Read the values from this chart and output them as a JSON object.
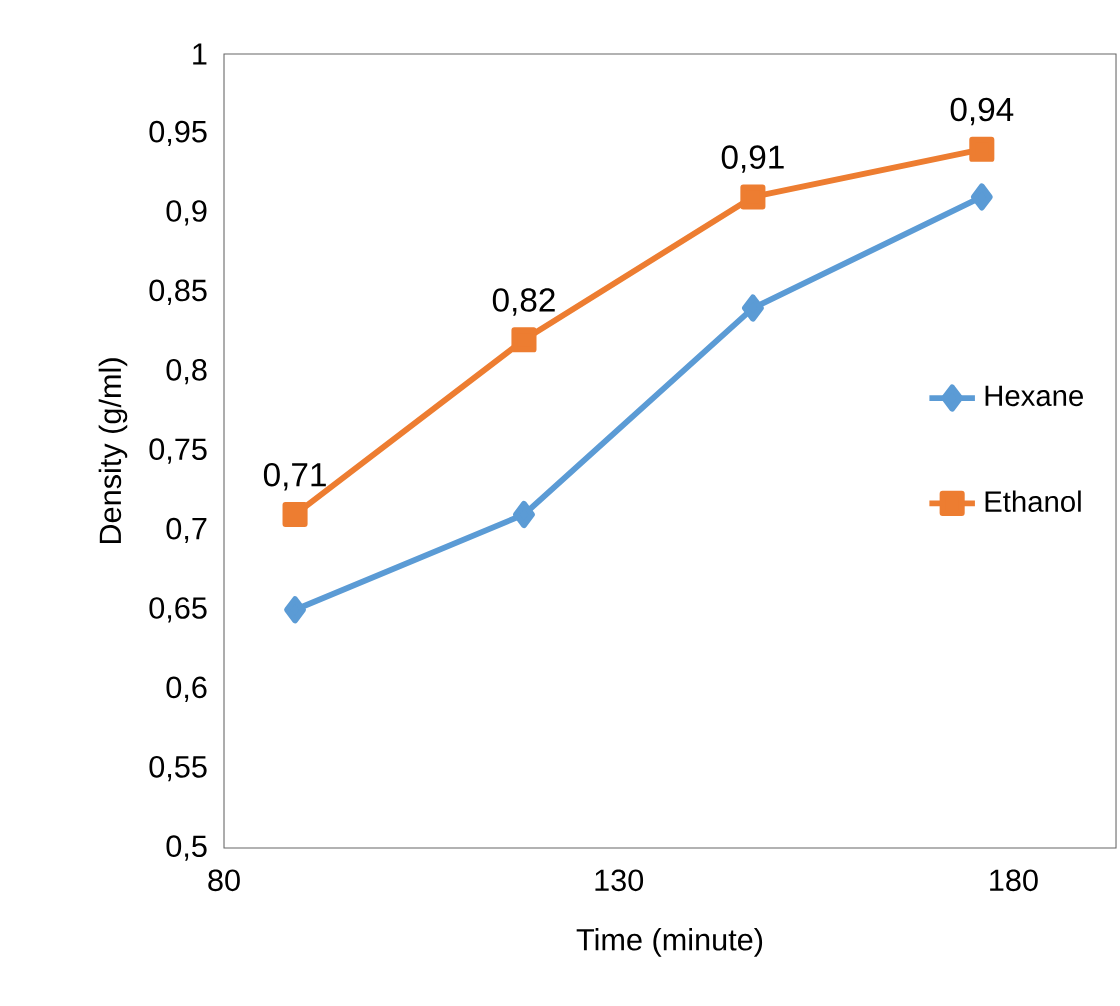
{
  "chart_data": {
    "type": "line",
    "xlabel": "Time (minute)",
    "ylabel": "Density (g/ml)",
    "xlim": [
      80,
      193
    ],
    "xticks": [
      80,
      130,
      180
    ],
    "ylim": [
      0.5,
      1
    ],
    "yticks": [
      {
        "value": 0.5,
        "label": "0,5"
      },
      {
        "value": 0.55,
        "label": "0,55"
      },
      {
        "value": 0.6,
        "label": "0,6"
      },
      {
        "value": 0.65,
        "label": "0,65"
      },
      {
        "value": 0.7,
        "label": "0,7"
      },
      {
        "value": 0.75,
        "label": "0,75"
      },
      {
        "value": 0.8,
        "label": "0,8"
      },
      {
        "value": 0.85,
        "label": "0,85"
      },
      {
        "value": 0.9,
        "label": "0,9"
      },
      {
        "value": 0.95,
        "label": "0,95"
      },
      1
    ],
    "grid": false,
    "legend": "right",
    "line_style": "solid",
    "series": [
      {
        "name": "Hexane",
        "color": "#5b9bd5",
        "marker": "diamond",
        "x": [
          89,
          118,
          147,
          176
        ],
        "values": [
          0.65,
          0.71,
          0.84,
          0.91
        ]
      },
      {
        "name": "Ethanol",
        "color": "#ed7d31",
        "marker": "square",
        "x": [
          89,
          118,
          147,
          176
        ],
        "values": [
          0.71,
          0.82,
          0.91,
          0.94
        ],
        "value_labels": [
          "0,71",
          "0,82",
          "0,91",
          "0,94"
        ]
      }
    ]
  }
}
